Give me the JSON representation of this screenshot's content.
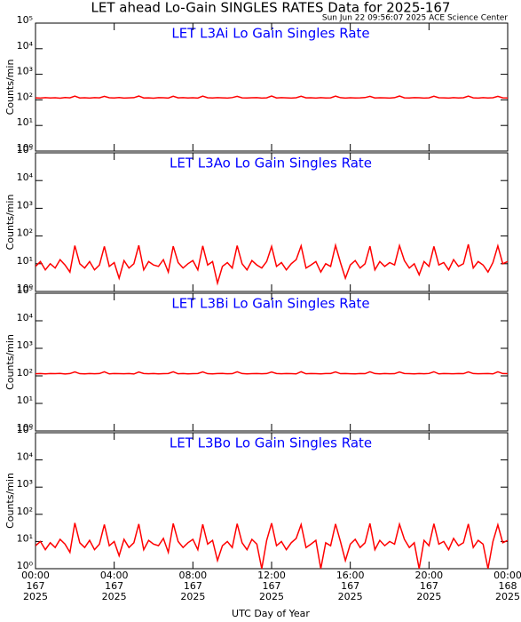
{
  "title": "LET ahead Lo-Gain SINGLES RATES Data for 2025-167",
  "subtitle": "Sun Jun 22 09:56:07 2025 ACE Science Center",
  "xlabel": "UTC Day of Year",
  "xlim": [
    0,
    24
  ],
  "xticks": [
    {
      "value": 0,
      "label": [
        "00:00",
        "167",
        "2025"
      ]
    },
    {
      "value": 4,
      "label": [
        "04:00",
        "167",
        "2025"
      ]
    },
    {
      "value": 8,
      "label": [
        "08:00",
        "167",
        "2025"
      ]
    },
    {
      "value": 12,
      "label": [
        "12:00",
        "167",
        "2025"
      ]
    },
    {
      "value": 16,
      "label": [
        "16:00",
        "167",
        "2025"
      ]
    },
    {
      "value": 20,
      "label": [
        "20:00",
        "167",
        "2025"
      ]
    },
    {
      "value": 24,
      "label": [
        "00:00",
        "168",
        "2025"
      ]
    }
  ],
  "x": [
    0,
    0.25,
    0.5,
    0.75,
    1,
    1.25,
    1.5,
    1.75,
    2,
    2.25,
    2.5,
    2.75,
    3,
    3.25,
    3.5,
    3.75,
    4,
    4.25,
    4.5,
    4.75,
    5,
    5.25,
    5.5,
    5.75,
    6,
    6.25,
    6.5,
    6.75,
    7,
    7.25,
    7.5,
    7.75,
    8,
    8.25,
    8.5,
    8.75,
    9,
    9.25,
    9.5,
    9.75,
    10,
    10.25,
    10.5,
    10.75,
    11,
    11.25,
    11.5,
    11.75,
    12,
    12.25,
    12.5,
    12.75,
    13,
    13.25,
    13.5,
    13.75,
    14,
    14.25,
    14.5,
    14.75,
    15,
    15.25,
    15.5,
    15.75,
    16,
    16.25,
    16.5,
    16.75,
    17,
    17.25,
    17.5,
    17.75,
    18,
    18.25,
    18.5,
    18.75,
    19,
    19.25,
    19.5,
    19.75,
    20,
    20.25,
    20.5,
    20.75,
    21,
    21.25,
    21.5,
    21.75,
    22,
    22.25,
    22.5,
    22.75,
    23,
    23.25,
    23.5,
    23.75,
    24
  ],
  "chart_data": [
    {
      "type": "line",
      "title": "LET L3Ai Lo Gain Singles Rate",
      "ylabel": "Counts/min",
      "log_y": true,
      "ylim": [
        1,
        100000
      ],
      "yticks": [
        {
          "value": 1,
          "label": "10⁰"
        },
        {
          "value": 10,
          "label": "10¹"
        },
        {
          "value": 100,
          "label": "10²"
        },
        {
          "value": 1000,
          "label": "10³"
        },
        {
          "value": 10000,
          "label": "10⁴"
        },
        {
          "value": 100000,
          "label": "10⁵"
        }
      ],
      "series": [
        {
          "color": "#ff0000",
          "values": [
            120,
            118,
            122,
            119,
            121,
            117,
            123,
            120,
            140,
            119,
            121,
            118,
            122,
            120,
            138,
            121,
            119,
            123,
            118,
            120,
            122,
            141,
            119,
            120,
            117,
            122,
            121,
            118,
            139,
            120,
            122,
            119,
            121,
            118,
            140,
            121,
            119,
            122,
            120,
            118,
            123,
            138,
            120,
            119,
            121,
            122,
            118,
            120,
            141,
            119,
            122,
            120,
            118,
            121,
            139,
            120,
            121,
            118,
            122,
            119,
            120,
            140,
            122,
            118,
            121,
            119,
            120,
            123,
            138,
            119,
            121,
            120,
            118,
            122,
            141,
            120,
            119,
            122,
            121,
            118,
            120,
            139,
            121,
            120,
            118,
            122,
            119,
            121,
            140,
            120,
            118,
            122,
            119,
            121,
            138,
            120,
            119
          ]
        }
      ]
    },
    {
      "type": "line",
      "title": "LET L3Ao Lo Gain Singles Rate",
      "ylabel": "Counts/min",
      "log_y": true,
      "ylim": [
        1,
        100000
      ],
      "yticks": [
        {
          "value": 1,
          "label": "10⁰"
        },
        {
          "value": 10,
          "label": "10¹"
        },
        {
          "value": 100,
          "label": "10²"
        },
        {
          "value": 1000,
          "label": "10³"
        },
        {
          "value": 10000,
          "label": "10⁴"
        },
        {
          "value": 100000,
          "label": "10⁵"
        }
      ],
      "series": [
        {
          "color": "#ff0000",
          "values": [
            8,
            12,
            6,
            10,
            7,
            14,
            9,
            5,
            45,
            10,
            7,
            12,
            6,
            9,
            42,
            8,
            11,
            3,
            13,
            7,
            10,
            46,
            6,
            12,
            9,
            8,
            14,
            5,
            43,
            11,
            7,
            10,
            13,
            6,
            44,
            9,
            12,
            2,
            8,
            11,
            7,
            45,
            10,
            6,
            13,
            9,
            7,
            12,
            42,
            8,
            11,
            6,
            10,
            14,
            44,
            7,
            9,
            12,
            5,
            10,
            8,
            46,
            11,
            3,
            9,
            13,
            7,
            10,
            43,
            6,
            12,
            8,
            11,
            9,
            45,
            13,
            7,
            10,
            4,
            12,
            8,
            42,
            9,
            11,
            6,
            14,
            8,
            10,
            50,
            7,
            12,
            9,
            5,
            11,
            44,
            10,
            12
          ]
        }
      ]
    },
    {
      "type": "line",
      "title": "LET L3Bi Lo Gain Singles Rate",
      "ylabel": "Counts/min",
      "log_y": true,
      "ylim": [
        1,
        100000
      ],
      "yticks": [
        {
          "value": 1,
          "label": "10⁰"
        },
        {
          "value": 10,
          "label": "10¹"
        },
        {
          "value": 100,
          "label": "10²"
        },
        {
          "value": 1000,
          "label": "10³"
        },
        {
          "value": 10000,
          "label": "10⁴"
        },
        {
          "value": 100000,
          "label": "10⁵"
        }
      ],
      "series": [
        {
          "color": "#ff0000",
          "values": [
            119,
            121,
            118,
            122,
            120,
            123,
            117,
            121,
            139,
            120,
            118,
            122,
            119,
            121,
            140,
            118,
            122,
            120,
            119,
            121,
            117,
            138,
            122,
            119,
            121,
            118,
            120,
            122,
            141,
            119,
            121,
            118,
            120,
            122,
            139,
            120,
            118,
            121,
            123,
            119,
            120,
            140,
            121,
            118,
            120,
            122,
            119,
            121,
            138,
            122,
            119,
            121,
            120,
            118,
            141,
            119,
            122,
            120,
            118,
            121,
            122,
            139,
            120,
            121,
            119,
            118,
            122,
            120,
            140,
            121,
            118,
            122,
            119,
            120,
            138,
            122,
            120,
            118,
            121,
            119,
            122,
            141,
            118,
            121,
            120,
            119,
            122,
            120,
            139,
            121,
            119,
            120,
            122,
            118,
            140,
            121,
            120
          ]
        }
      ]
    },
    {
      "type": "line",
      "title": "LET L3Bo Lo Gain Singles Rate",
      "ylabel": "Counts/min",
      "log_y": true,
      "ylim": [
        1,
        100000
      ],
      "yticks": [
        {
          "value": 1,
          "label": "10⁰"
        },
        {
          "value": 10,
          "label": "10¹"
        },
        {
          "value": 100,
          "label": "10²"
        },
        {
          "value": 1000,
          "label": "10³"
        },
        {
          "value": 10000,
          "label": "10⁴"
        },
        {
          "value": 100000,
          "label": "10⁵"
        }
      ],
      "series": [
        {
          "color": "#ff0000",
          "values": [
            7,
            10,
            5,
            9,
            6,
            12,
            8,
            4,
            48,
            9,
            6,
            11,
            5,
            8,
            42,
            7,
            10,
            3,
            12,
            6,
            9,
            44,
            5,
            11,
            8,
            7,
            13,
            4,
            46,
            10,
            6,
            9,
            12,
            5,
            43,
            8,
            11,
            2,
            7,
            10,
            6,
            45,
            9,
            5,
            12,
            8,
            1,
            11,
            47,
            7,
            10,
            5,
            9,
            13,
            42,
            6,
            8,
            11,
            1,
            9,
            7,
            44,
            10,
            2,
            8,
            12,
            6,
            9,
            46,
            5,
            11,
            7,
            10,
            8,
            43,
            12,
            6,
            9,
            1,
            11,
            7,
            45,
            8,
            10,
            5,
            13,
            7,
            9,
            44,
            6,
            11,
            8,
            1,
            10,
            41,
            9,
            11
          ]
        }
      ]
    }
  ]
}
